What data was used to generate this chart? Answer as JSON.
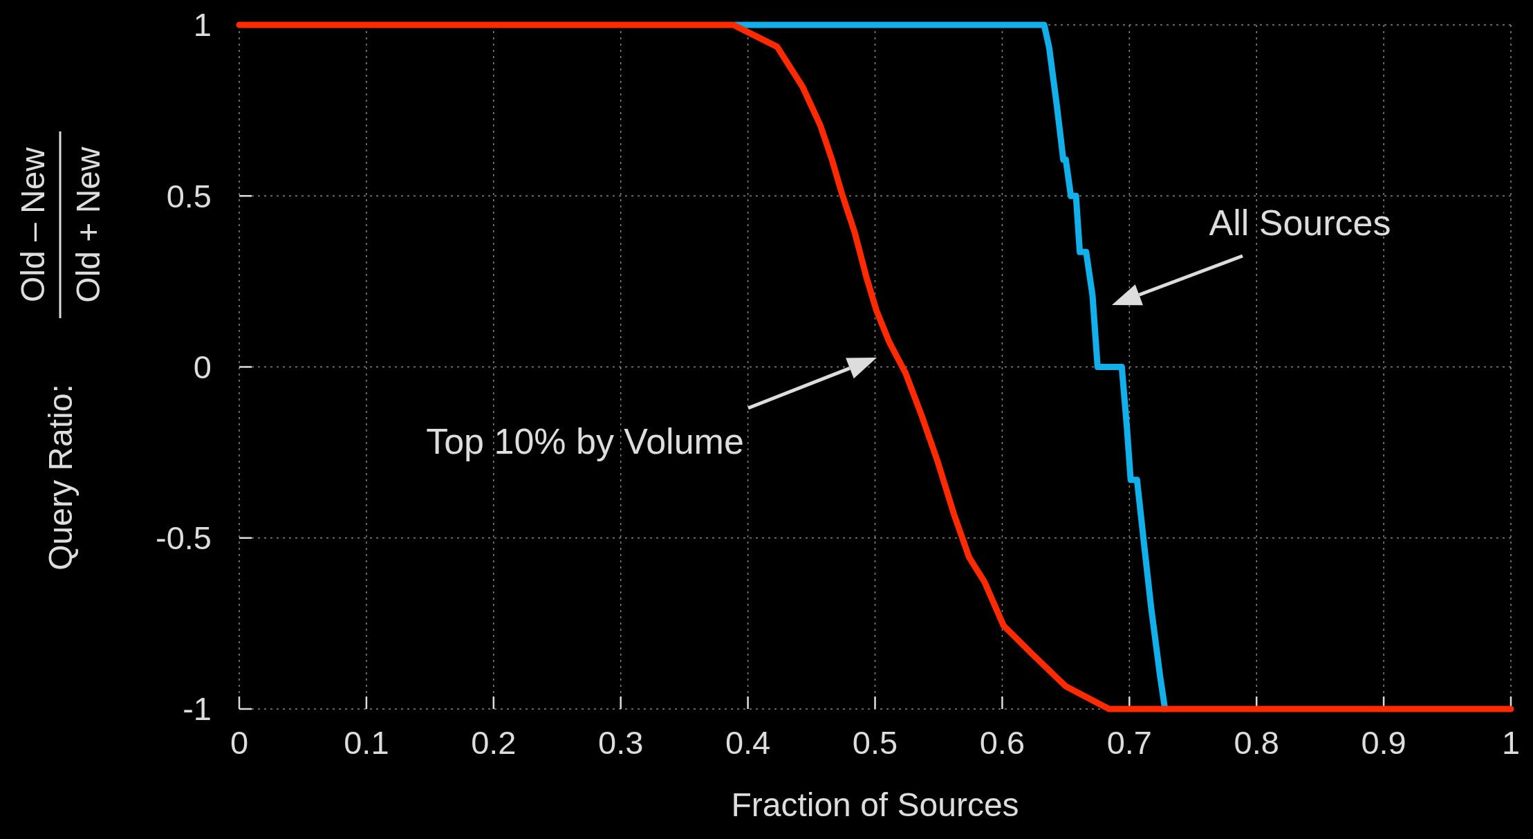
{
  "chart_data": {
    "type": "line",
    "xlabel": "Fraction of Sources",
    "ylabel": "Query Ratio:",
    "xlim": [
      0,
      1
    ],
    "xticks": [
      0,
      0.1,
      0.2,
      0.3,
      0.4,
      0.5,
      0.6,
      0.7,
      0.8,
      0.9,
      1
    ],
    "ylim": [
      -1,
      1
    ],
    "yticks": [
      -1,
      -0.5,
      0,
      0.5,
      1
    ],
    "grid": true,
    "marker": "none",
    "line_style": "solid",
    "annotations": [
      "Old – New",
      "Old + New",
      "All Sources",
      "Top 10% by Volume"
    ],
    "series": [
      {
        "color": "#12b0ea",
        "x": [
          0.39,
          0.633,
          0.637,
          0.643,
          0.646,
          0.648,
          0.65,
          0.654,
          0.658,
          0.661,
          0.666,
          0.671,
          0.675,
          0.694,
          0.698,
          0.701,
          0.706,
          0.711,
          0.717,
          0.724,
          0.728
        ],
        "values": [
          1,
          1,
          0.932,
          0.762,
          0.67,
          0.606,
          0.606,
          0.5,
          0.5,
          0.336,
          0.336,
          0.209,
          0,
          0,
          -0.174,
          -0.33,
          -0.33,
          -0.5,
          -0.7,
          -0.9,
          -1
        ]
      },
      {
        "color": "#ff2a00",
        "x": [
          0,
          0.3885,
          0.401,
          0.423,
          0.443,
          0.457,
          0.466,
          0.474,
          0.484,
          0.493,
          0.501,
          0.511,
          0.524,
          0.537,
          0.549,
          0.562,
          0.574,
          0.586,
          0.601,
          0.624,
          0.65,
          0.684,
          1
        ],
        "values": [
          1,
          1,
          0.977,
          0.936,
          0.819,
          0.706,
          0.607,
          0.506,
          0.393,
          0.265,
          0.166,
          0.074,
          -0.018,
          -0.146,
          -0.274,
          -0.43,
          -0.557,
          -0.628,
          -0.756,
          -0.841,
          -0.934,
          -1,
          -1
        ]
      }
    ]
  }
}
